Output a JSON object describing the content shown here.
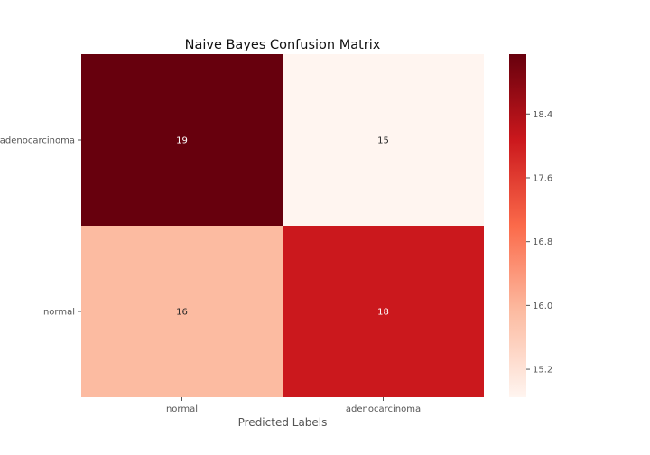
{
  "chart_data": {
    "type": "heatmap",
    "title": "Naive Bayes Confusion Matrix",
    "xlabel": "Predicted Labels",
    "ylabel": "",
    "x_categories": [
      "normal",
      "adenocarcinoma"
    ],
    "y_categories": [
      "adenocarcinoma",
      "normal"
    ],
    "values": [
      [
        19,
        15
      ],
      [
        16,
        18
      ]
    ],
    "colormap": "Reds",
    "color_range": [
      15,
      19
    ],
    "colorbar_ticks": [
      "15.2",
      "16.0",
      "16.8",
      "17.6",
      "18.4"
    ],
    "annotation_colors": {
      "light": "#ffffff",
      "dark": "#262626"
    },
    "colorbar_gradient": [
      "#fff5f0",
      "#fcbba1",
      "#fb6a4a",
      "#cb181d",
      "#67000d"
    ]
  }
}
